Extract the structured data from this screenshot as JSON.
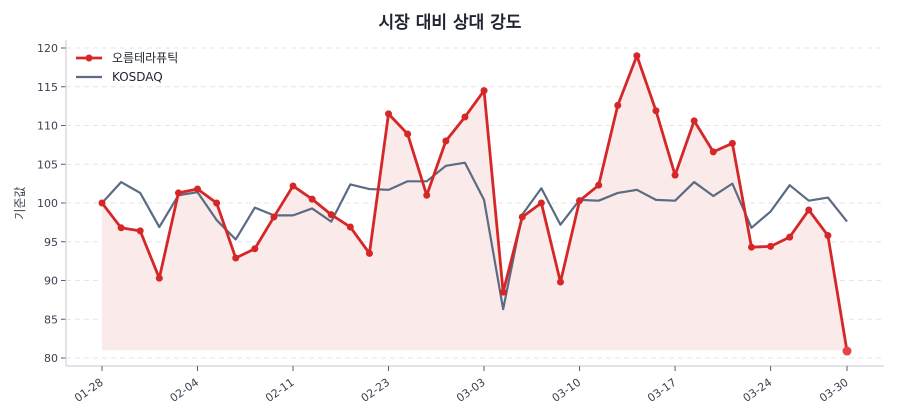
{
  "chart_data": {
    "type": "line",
    "title": "시장 대비 상대 강도",
    "xlabel": "",
    "ylabel": "기준값",
    "ylim": [
      79,
      121
    ],
    "yticks": [
      80,
      85,
      90,
      95,
      100,
      105,
      110,
      115,
      120
    ],
    "xtick_labels": [
      "01-28",
      "02-04",
      "02-11",
      "02-23",
      "03-03",
      "03-10",
      "03-17",
      "03-24",
      "03-30"
    ],
    "xtick_indices": [
      0,
      5,
      10,
      15,
      20,
      25,
      30,
      35,
      39
    ],
    "grid": "horizontal dashed",
    "legend_position": "upper left",
    "fill_baseline": 81,
    "series": [
      {
        "name": "오름테라퓨틱",
        "color": "#d62728",
        "marker": "circle",
        "fill": "#fbe9e9",
        "values": [
          100.0,
          96.8,
          96.4,
          90.3,
          101.3,
          101.8,
          100.0,
          92.9,
          94.1,
          98.2,
          102.2,
          100.5,
          98.5,
          96.9,
          93.5,
          111.5,
          108.9,
          101.0,
          108.0,
          111.1,
          114.5,
          88.5,
          98.2,
          100.0,
          89.8,
          100.3,
          102.3,
          112.6,
          119.0,
          111.9,
          103.6,
          110.6,
          106.6,
          107.7,
          94.3,
          94.4,
          95.6,
          99.1,
          95.8,
          80.9
        ]
      },
      {
        "name": "KOSDAQ",
        "color": "#5a6b82",
        "marker": "none",
        "values": [
          100.0,
          102.7,
          101.3,
          96.9,
          101.0,
          101.4,
          97.8,
          95.3,
          99.4,
          98.4,
          98.4,
          99.3,
          97.6,
          102.4,
          101.8,
          101.7,
          102.8,
          102.8,
          104.8,
          105.2,
          100.4,
          86.3,
          98.5,
          101.9,
          97.2,
          100.4,
          100.3,
          101.3,
          101.7,
          100.4,
          100.3,
          102.7,
          100.9,
          102.5,
          96.8,
          98.9,
          102.3,
          100.3,
          100.7,
          97.6
        ]
      }
    ]
  }
}
